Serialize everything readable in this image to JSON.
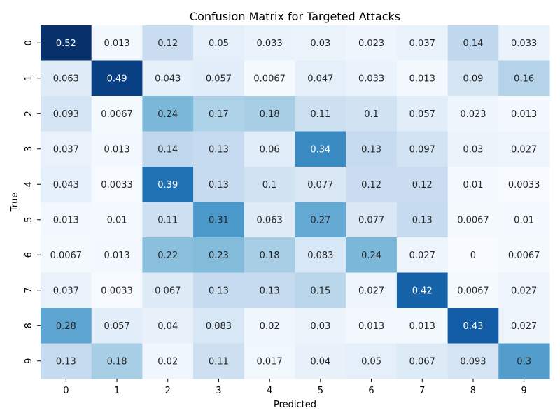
{
  "chart_data": {
    "type": "heatmap",
    "title": "Confusion Matrix for Targeted Attacks",
    "xlabel": "Predicted",
    "ylabel": "True",
    "x_categories": [
      "0",
      "1",
      "2",
      "3",
      "4",
      "5",
      "6",
      "7",
      "8",
      "9"
    ],
    "y_categories": [
      "0",
      "1",
      "2",
      "3",
      "4",
      "5",
      "6",
      "7",
      "8",
      "9"
    ],
    "values": [
      [
        0.52,
        0.013,
        0.12,
        0.05,
        0.033,
        0.03,
        0.023,
        0.037,
        0.14,
        0.033
      ],
      [
        0.063,
        0.49,
        0.043,
        0.057,
        0.0067,
        0.047,
        0.033,
        0.013,
        0.09,
        0.16
      ],
      [
        0.093,
        0.0067,
        0.24,
        0.17,
        0.18,
        0.11,
        0.1,
        0.057,
        0.023,
        0.013
      ],
      [
        0.037,
        0.013,
        0.14,
        0.13,
        0.06,
        0.34,
        0.13,
        0.097,
        0.03,
        0.027
      ],
      [
        0.043,
        0.0033,
        0.39,
        0.13,
        0.1,
        0.077,
        0.12,
        0.12,
        0.01,
        0.0033
      ],
      [
        0.013,
        0.01,
        0.11,
        0.31,
        0.063,
        0.27,
        0.077,
        0.13,
        0.0067,
        0.01
      ],
      [
        0.0067,
        0.013,
        0.22,
        0.23,
        0.18,
        0.083,
        0.24,
        0.027,
        0,
        0.0067
      ],
      [
        0.037,
        0.0033,
        0.067,
        0.13,
        0.13,
        0.15,
        0.027,
        0.42,
        0.0067,
        0.027
      ],
      [
        0.28,
        0.057,
        0.04,
        0.083,
        0.02,
        0.03,
        0.013,
        0.013,
        0.43,
        0.027
      ],
      [
        0.13,
        0.18,
        0.02,
        0.11,
        0.017,
        0.04,
        0.05,
        0.067,
        0.093,
        0.3
      ]
    ],
    "labels": [
      [
        "0.52",
        "0.013",
        "0.12",
        "0.05",
        "0.033",
        "0.03",
        "0.023",
        "0.037",
        "0.14",
        "0.033"
      ],
      [
        "0.063",
        "0.49",
        "0.043",
        "0.057",
        "0.0067",
        "0.047",
        "0.033",
        "0.013",
        "0.09",
        "0.16"
      ],
      [
        "0.093",
        "0.0067",
        "0.24",
        "0.17",
        "0.18",
        "0.11",
        "0.1",
        "0.057",
        "0.023",
        "0.013"
      ],
      [
        "0.037",
        "0.013",
        "0.14",
        "0.13",
        "0.06",
        "0.34",
        "0.13",
        "0.097",
        "0.03",
        "0.027"
      ],
      [
        "0.043",
        "0.0033",
        "0.39",
        "0.13",
        "0.1",
        "0.077",
        "0.12",
        "0.12",
        "0.01",
        "0.0033"
      ],
      [
        "0.013",
        "0.01",
        "0.11",
        "0.31",
        "0.063",
        "0.27",
        "0.077",
        "0.13",
        "0.0067",
        "0.01"
      ],
      [
        "0.0067",
        "0.013",
        "0.22",
        "0.23",
        "0.18",
        "0.083",
        "0.24",
        "0.027",
        "0",
        "0.0067"
      ],
      [
        "0.037",
        "0.0033",
        "0.067",
        "0.13",
        "0.13",
        "0.15",
        "0.027",
        "0.42",
        "0.0067",
        "0.027"
      ],
      [
        "0.28",
        "0.057",
        "0.04",
        "0.083",
        "0.02",
        "0.03",
        "0.013",
        "0.013",
        "0.43",
        "0.027"
      ],
      [
        "0.13",
        "0.18",
        "0.02",
        "0.11",
        "0.017",
        "0.04",
        "0.05",
        "0.067",
        "0.093",
        "0.3"
      ]
    ],
    "colormap": "Blues",
    "vmin": 0,
    "vmax": 0.52,
    "grid": false,
    "colorbar": false
  }
}
